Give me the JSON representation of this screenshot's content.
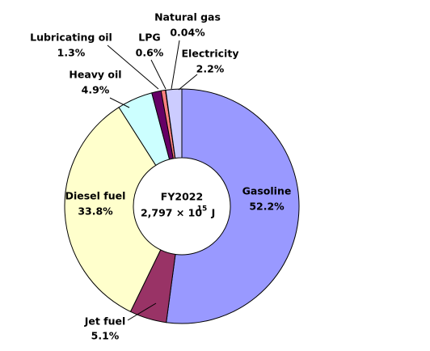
{
  "chart_data": {
    "type": "donut",
    "center_title": "FY2022",
    "center_total": "2,797 × 10",
    "center_exponent": "15",
    "center_unit": "J",
    "categories": [
      "Gasoline",
      "Jet fuel",
      "Diesel fuel",
      "Heavy oil",
      "Lubricating oil",
      "LPG",
      "Natural gas",
      "Electricity"
    ],
    "values": [
      52.2,
      5.1,
      33.8,
      4.9,
      1.3,
      0.6,
      0.04,
      2.2
    ],
    "value_labels": [
      "52.2%",
      "5.1%",
      "33.8%",
      "4.9%",
      "1.3%",
      "0.6%",
      "0.04%",
      "2.2%"
    ],
    "colors": [
      "#9999ff",
      "#993366",
      "#ffffcc",
      "#ccffff",
      "#660066",
      "#ff8080",
      "#0066cc",
      "#ccccff"
    ]
  }
}
